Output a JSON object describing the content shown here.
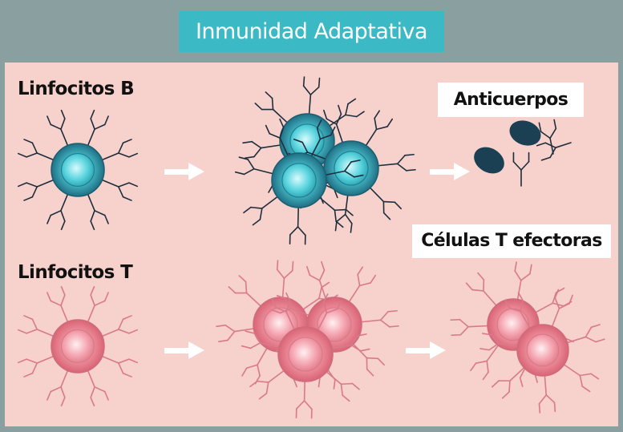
{
  "title": "Inmunidad Adaptativa",
  "labels": {
    "b_cells": "Linfocitos B",
    "t_cells": "Linfocitos T",
    "antibodies": "Anticuerpos",
    "effector_t": "Células T efectoras"
  },
  "colors": {
    "background": "#8a9fa0",
    "panel": "#f7d1cb",
    "title_box": "#3bb9c4",
    "b_cell": "#3aaab8",
    "t_cell": "#ec8c9a",
    "b_receptor": "#1f2e3d",
    "t_receptor": "#d97a88",
    "antigen": "#1b3f53",
    "arrow": "#ffffff"
  }
}
